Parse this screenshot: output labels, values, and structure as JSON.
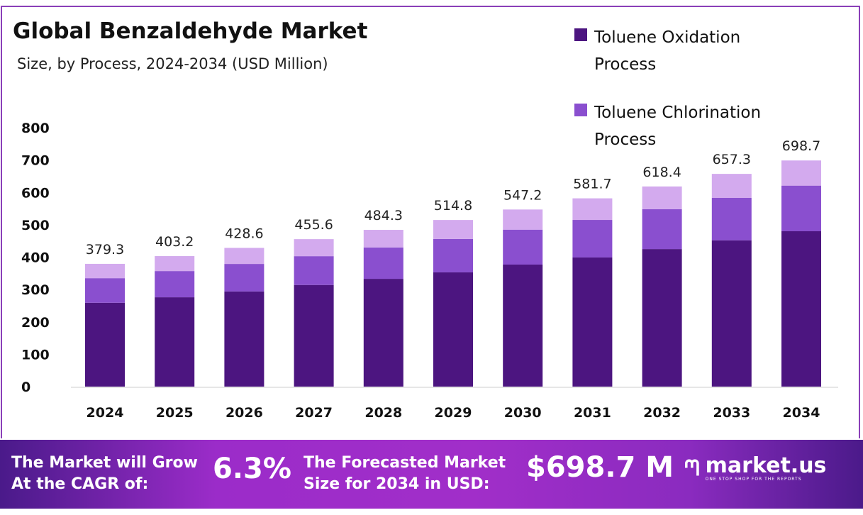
{
  "chart_data": {
    "type": "bar",
    "stacked": true,
    "title": "Global Benzaldehyde Market",
    "subtitle": "Size, by Process, 2024-2034 (USD Million)",
    "categories": [
      "2024",
      "2025",
      "2026",
      "2027",
      "2028",
      "2029",
      "2030",
      "2031",
      "2032",
      "2033",
      "2034"
    ],
    "series": [
      {
        "name": "Toluene Oxidation Process",
        "color": "#4c1580",
        "values": [
          259,
          276,
          294,
          314,
          333,
          353,
          377,
          399,
          425,
          452,
          480
        ]
      },
      {
        "name": "Toluene Chlorination Process",
        "color": "#8a4fcf",
        "values": [
          76,
          81,
          85,
          89,
          97,
          103,
          108,
          116,
          123,
          131,
          141
        ]
      },
      {
        "color": "#d3aaee",
        "values": [
          44.3,
          46.2,
          49.6,
          52.6,
          54.3,
          58.8,
          62.2,
          66.7,
          70.4,
          74.3,
          77.7
        ]
      }
    ],
    "totals": [
      "379.3",
      "403.2",
      "428.6",
      "455.6",
      "484.3",
      "514.8",
      "547.2",
      "581.7",
      "618.4",
      "657.3",
      "698.7"
    ],
    "yticks": [
      "0",
      "100",
      "200",
      "300",
      "400",
      "500",
      "600",
      "700",
      "800"
    ],
    "ylim": [
      0,
      800
    ],
    "grid": false,
    "legend": "top-right"
  },
  "banner": {
    "cagr_label_1": "The Market will Grow",
    "cagr_label_2": "At the CAGR of:",
    "cagr_value": "6.3%",
    "forecast_label_1": "The Forecasted Market",
    "forecast_label_2": "Size for 2034 in USD:",
    "forecast_value": "$698.7 M",
    "brand": "market.us",
    "tagline": "ONE STOP SHOP FOR THE REPORTS"
  }
}
